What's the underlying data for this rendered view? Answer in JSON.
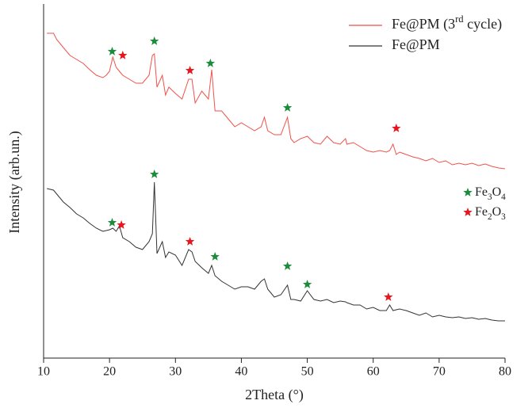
{
  "chart_data": {
    "type": "line",
    "x_label": "2Theta (°)",
    "y_label": "Intensity (arb.un.)",
    "xlim": [
      10,
      80
    ],
    "xticks": [
      10,
      20,
      30,
      40,
      50,
      60,
      70,
      80
    ],
    "ylim": [
      0,
      450
    ],
    "x": [
      10.5,
      11.5,
      12,
      13,
      14,
      15,
      16,
      17,
      18,
      19,
      19.5,
      20,
      20.5,
      21,
      21.5,
      22,
      23,
      24,
      25,
      26,
      26.5,
      26.8,
      27.2,
      28,
      28.5,
      29,
      30,
      31,
      32,
      32.5,
      33,
      34,
      35,
      35.5,
      36,
      37,
      38,
      39,
      40,
      41,
      42,
      43,
      43.5,
      44,
      45,
      46,
      47,
      47.5,
      48,
      49,
      50,
      51,
      52,
      53,
      54,
      55,
      55.8,
      56,
      57,
      58,
      59,
      60,
      61,
      62,
      62.5,
      63,
      63.5,
      64,
      65,
      66,
      67,
      68,
      69,
      70,
      71,
      72,
      73,
      74,
      75,
      76,
      77,
      78,
      79,
      80
    ],
    "series": [
      {
        "name": "Fe@PM (3rd cycle)",
        "color": "#f0524a",
        "values": [
          410,
          410,
          402,
          392,
          382,
          377,
          372,
          364,
          357,
          354,
          357,
          362,
          380,
          367,
          362,
          357,
          352,
          347,
          347,
          357,
          382,
          384,
          342,
          357,
          332,
          342,
          334,
          327,
          352,
          352,
          322,
          337,
          327,
          364,
          312,
          312,
          302,
          292,
          297,
          292,
          287,
          292,
          304,
          287,
          282,
          282,
          304,
          277,
          272,
          277,
          280,
          272,
          270,
          280,
          272,
          270,
          277,
          270,
          272,
          267,
          262,
          260,
          262,
          260,
          262,
          270,
          257,
          260,
          257,
          254,
          252,
          249,
          252,
          247,
          249,
          244,
          246,
          244,
          246,
          243,
          245,
          242,
          240,
          239
        ]
      },
      {
        "name": "Fe@PM",
        "color": "#333333",
        "values": [
          214,
          212,
          207,
          197,
          190,
          182,
          177,
          170,
          164,
          160,
          161,
          162,
          164,
          160,
          167,
          152,
          147,
          140,
          137,
          147,
          157,
          222,
          132,
          147,
          127,
          134,
          130,
          117,
          137,
          134,
          122,
          114,
          107,
          117,
          104,
          97,
          92,
          87,
          90,
          90,
          87,
          97,
          100,
          87,
          77,
          80,
          92,
          74,
          74,
          72,
          85,
          74,
          72,
          74,
          70,
          72,
          71,
          70,
          67,
          67,
          62,
          64,
          60,
          60,
          67,
          60,
          61,
          62,
          60,
          57,
          54,
          57,
          52,
          54,
          52,
          51,
          52,
          50,
          51,
          49,
          50,
          48,
          47,
          47
        ]
      }
    ],
    "markers": [
      {
        "name": "Fe3O4",
        "color": "#1a8c3a",
        "x": [
          20.4,
          26.8,
          35.3,
          47,
          20.4,
          26.8,
          36,
          47,
          50
        ],
        "y": [
          387,
          400,
          372,
          316,
          171,
          232,
          128,
          116,
          93
        ]
      },
      {
        "name": "Fe2O3",
        "color": "#e8141e",
        "x": [
          22,
          32.2,
          63.5,
          21.8,
          32.2,
          62.3
        ],
        "y": [
          382,
          363,
          290,
          168,
          147,
          77
        ]
      }
    ]
  }
}
